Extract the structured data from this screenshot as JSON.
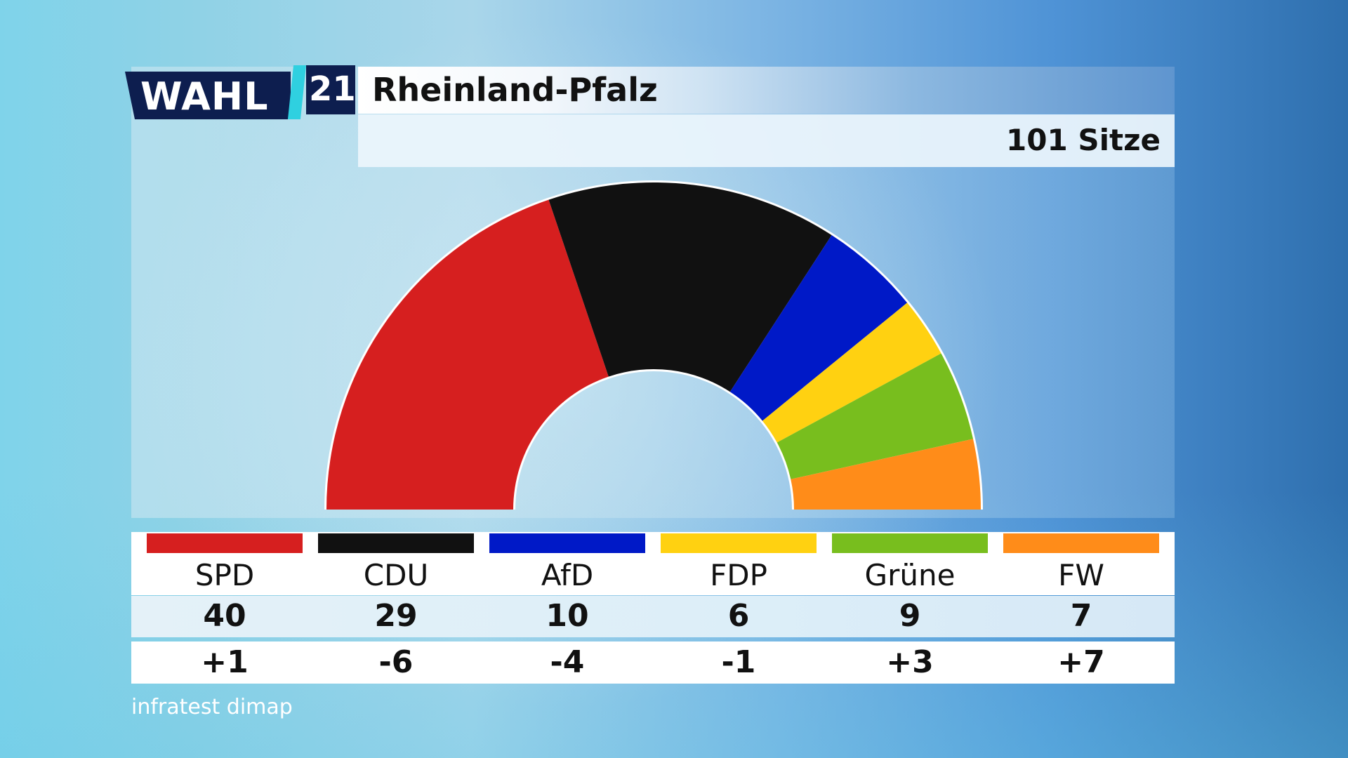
{
  "header": {
    "logo_text": "WAHL",
    "logo_number": "21",
    "title": "Rheinland-Pfalz",
    "subtitle": "101 Sitze"
  },
  "source": "infratest dimap",
  "chart_data": {
    "type": "parliament-semicircle",
    "title": "Rheinland-Pfalz",
    "subtitle": "101 Sitze",
    "total_seats": 101,
    "parties": [
      {
        "name": "SPD",
        "seats": 40,
        "change": "+1",
        "color": "#d61f1f"
      },
      {
        "name": "CDU",
        "seats": 29,
        "change": "-6",
        "color": "#111111"
      },
      {
        "name": "AfD",
        "seats": 10,
        "change": "-4",
        "color": "#0019c7"
      },
      {
        "name": "FDP",
        "seats": 6,
        "change": "-1",
        "color": "#ffd111"
      },
      {
        "name": "Grüne",
        "seats": 9,
        "change": "+3",
        "color": "#78be1e"
      },
      {
        "name": "FW",
        "seats": 7,
        "change": "+7",
        "color": "#ff8c19"
      }
    ]
  }
}
